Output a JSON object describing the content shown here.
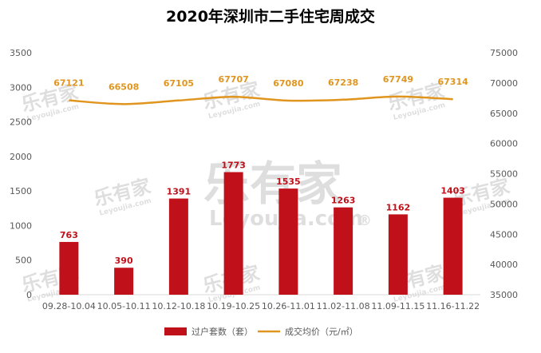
{
  "chart_data": {
    "type": "bar",
    "title": "2020年深圳市二手住宅周成交",
    "categories": [
      "09.28-10.04",
      "10.05-10.11",
      "10.12-10.18",
      "10.19-10.25",
      "10.26-11.01",
      "11.02-11.08",
      "11.09-11.15",
      "11.16-11.22"
    ],
    "series": [
      {
        "name": "过户套数（套）",
        "type": "bar",
        "axis": "left",
        "color": "#c0111b",
        "values": [
          763,
          390,
          1391,
          1773,
          1535,
          1263,
          1162,
          1403
        ]
      },
      {
        "name": "成交均价（元/㎡）",
        "type": "line",
        "axis": "right",
        "color": "#e0951f",
        "values": [
          67121,
          66508,
          67105,
          67707,
          67080,
          67238,
          67749,
          67314
        ]
      }
    ],
    "ylim": [
      0,
      3500
    ],
    "yticks": [
      0,
      500,
      1000,
      1500,
      2000,
      2500,
      3000,
      3500
    ],
    "y2lim": [
      35000,
      75000
    ],
    "y2ticks": [
      35000,
      40000,
      45000,
      50000,
      55000,
      60000,
      65000,
      70000,
      75000
    ],
    "grid": false,
    "legend_position": "bottom"
  },
  "watermark": {
    "brand_cn": "乐有家",
    "brand_en": "Leyoujia.com",
    "registered": "®"
  }
}
